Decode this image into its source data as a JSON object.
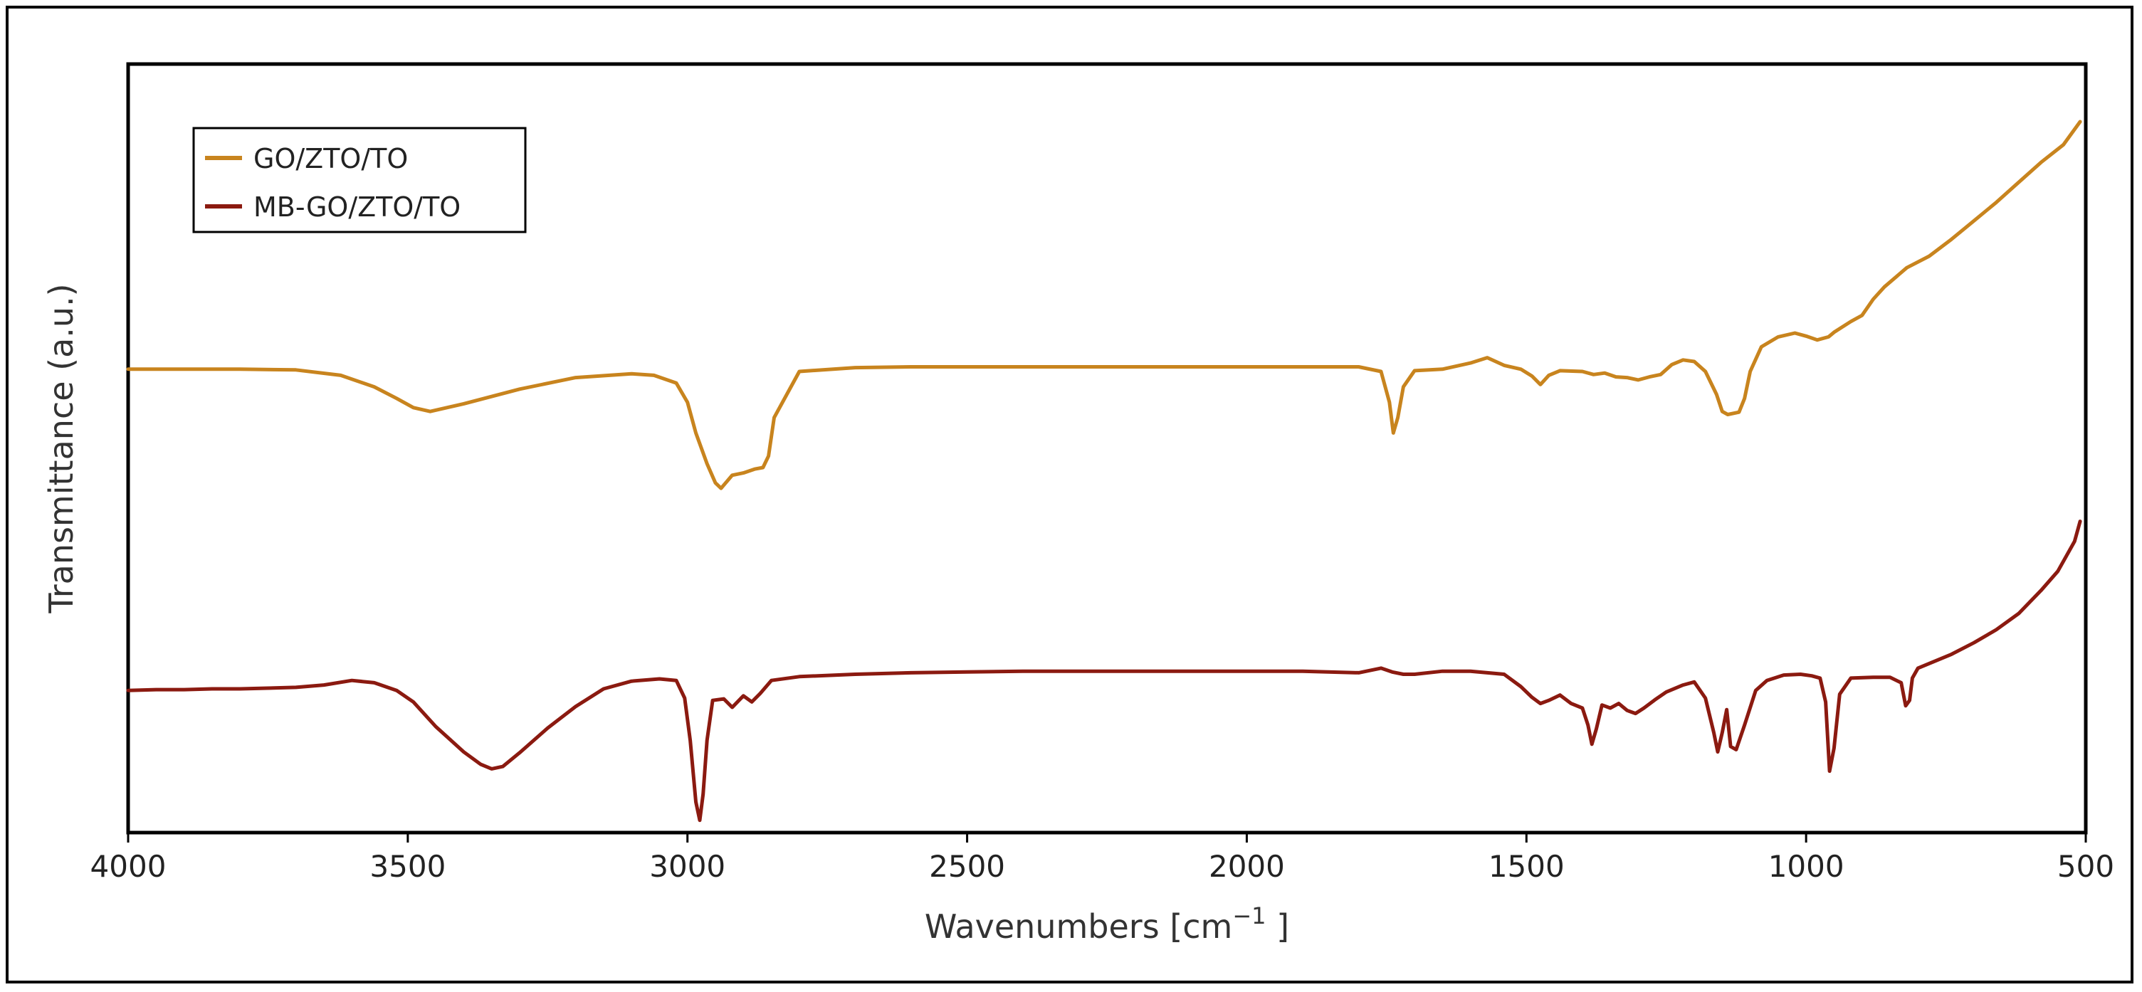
{
  "chart_data": {
    "type": "line",
    "title": "",
    "xlabel": "Wavenumbers [cm",
    "xlabel_sup": "−1",
    "xlabel_end": " ]",
    "ylabel": "Transmittance (a.u.)",
    "xlim": [
      4000,
      500
    ],
    "ylim": [
      0,
      100
    ],
    "x_reversed": true,
    "y_ticks_shown": false,
    "grid": false,
    "legend_position": "top-left",
    "x_ticks": [
      {
        "value": 4000,
        "label": "4000"
      },
      {
        "value": 3500,
        "label": "3500"
      },
      {
        "value": 3000,
        "label": "3000"
      },
      {
        "value": 2500,
        "label": "2500"
      },
      {
        "value": 2000,
        "label": "2000"
      },
      {
        "value": 1500,
        "label": "1500"
      },
      {
        "value": 1000,
        "label": "1000"
      },
      {
        "value": 500,
        "label": "500"
      }
    ],
    "series": [
      {
        "name": "GO/ZTO/TO",
        "color": "#C8841E",
        "x": [
          4000,
          3900,
          3800,
          3700,
          3620,
          3560,
          3520,
          3490,
          3460,
          3400,
          3300,
          3200,
          3100,
          3060,
          3020,
          3000,
          2985,
          2965,
          2950,
          2940,
          2920,
          2900,
          2880,
          2865,
          2855,
          2845,
          2800,
          2700,
          2600,
          2500,
          2400,
          2300,
          2200,
          2100,
          2000,
          1900,
          1800,
          1760,
          1745,
          1738,
          1730,
          1720,
          1700,
          1650,
          1600,
          1570,
          1540,
          1510,
          1490,
          1475,
          1460,
          1440,
          1400,
          1380,
          1360,
          1340,
          1320,
          1300,
          1280,
          1260,
          1240,
          1220,
          1200,
          1180,
          1160,
          1150,
          1140,
          1120,
          1110,
          1100,
          1080,
          1050,
          1020,
          1000,
          980,
          960,
          950,
          920,
          900,
          880,
          860,
          820,
          780,
          740,
          700,
          660,
          620,
          580,
          540,
          510
        ],
        "y": [
          60.3,
          60.3,
          60.3,
          60.2,
          59.5,
          58.0,
          56.5,
          55.3,
          54.8,
          55.8,
          57.7,
          59.2,
          59.7,
          59.5,
          58.5,
          56.0,
          52.0,
          48.0,
          45.5,
          44.8,
          46.5,
          46.8,
          47.3,
          47.5,
          49.0,
          54.0,
          60.0,
          60.5,
          60.6,
          60.6,
          60.6,
          60.6,
          60.6,
          60.6,
          60.6,
          60.6,
          60.6,
          60.0,
          56.0,
          52.0,
          54.0,
          58.0,
          60.1,
          60.3,
          61.1,
          61.8,
          60.8,
          60.3,
          59.4,
          58.3,
          59.5,
          60.1,
          60.0,
          59.6,
          59.8,
          59.3,
          59.2,
          58.9,
          59.3,
          59.6,
          60.9,
          61.5,
          61.3,
          60.0,
          57.0,
          54.8,
          54.4,
          54.7,
          56.5,
          60.0,
          63.2,
          64.5,
          65.0,
          64.6,
          64.1,
          64.5,
          65.1,
          66.5,
          67.3,
          69.4,
          71.0,
          73.5,
          75.0,
          77.2,
          79.6,
          82.0,
          84.6,
          87.2,
          89.5,
          92.5
        ]
      },
      {
        "name": "MB-GO/ZTO/TO",
        "color": "#8B1A10",
        "x": [
          4000,
          3950,
          3900,
          3850,
          3800,
          3750,
          3700,
          3650,
          3600,
          3560,
          3520,
          3490,
          3450,
          3400,
          3370,
          3350,
          3330,
          3300,
          3250,
          3200,
          3150,
          3100,
          3050,
          3020,
          3005,
          2995,
          2985,
          2978,
          2972,
          2965,
          2955,
          2935,
          2920,
          2900,
          2885,
          2870,
          2850,
          2800,
          2700,
          2600,
          2500,
          2400,
          2300,
          2200,
          2100,
          2000,
          1900,
          1800,
          1760,
          1740,
          1720,
          1700,
          1650,
          1600,
          1570,
          1540,
          1510,
          1490,
          1475,
          1460,
          1440,
          1420,
          1400,
          1390,
          1383,
          1375,
          1365,
          1350,
          1335,
          1320,
          1305,
          1290,
          1270,
          1250,
          1220,
          1200,
          1180,
          1165,
          1158,
          1150,
          1142,
          1135,
          1125,
          1110,
          1090,
          1070,
          1040,
          1010,
          990,
          975,
          965,
          958,
          950,
          940,
          920,
          880,
          850,
          830,
          822,
          815,
          810,
          800,
          780,
          740,
          700,
          660,
          620,
          580,
          550,
          520,
          510
        ],
        "y": [
          18.5,
          18.6,
          18.6,
          18.7,
          18.7,
          18.8,
          18.9,
          19.2,
          19.8,
          19.5,
          18.5,
          17.0,
          13.8,
          10.5,
          8.9,
          8.3,
          8.6,
          10.4,
          13.6,
          16.4,
          18.7,
          19.7,
          20.0,
          19.8,
          17.5,
          12.0,
          4.0,
          1.6,
          5.0,
          12.0,
          17.2,
          17.4,
          16.3,
          17.8,
          17.0,
          18.1,
          19.8,
          20.3,
          20.6,
          20.8,
          20.9,
          21.0,
          21.0,
          21.0,
          21.0,
          21.0,
          21.0,
          20.8,
          21.4,
          20.9,
          20.6,
          20.6,
          21.0,
          21.0,
          20.8,
          20.6,
          19.0,
          17.6,
          16.8,
          17.2,
          17.9,
          16.8,
          16.2,
          14.0,
          11.5,
          13.5,
          16.6,
          16.2,
          16.8,
          15.9,
          15.5,
          16.2,
          17.3,
          18.3,
          19.2,
          19.6,
          17.5,
          13.0,
          10.5,
          13.0,
          16.0,
          11.2,
          10.8,
          14.0,
          18.5,
          19.8,
          20.5,
          20.6,
          20.4,
          20.1,
          17.0,
          8.0,
          11.0,
          18.0,
          20.1,
          20.2,
          20.2,
          19.5,
          16.5,
          17.2,
          20.1,
          21.4,
          22.0,
          23.2,
          24.7,
          26.4,
          28.5,
          31.5,
          34.0,
          37.9,
          40.5
        ]
      }
    ]
  }
}
